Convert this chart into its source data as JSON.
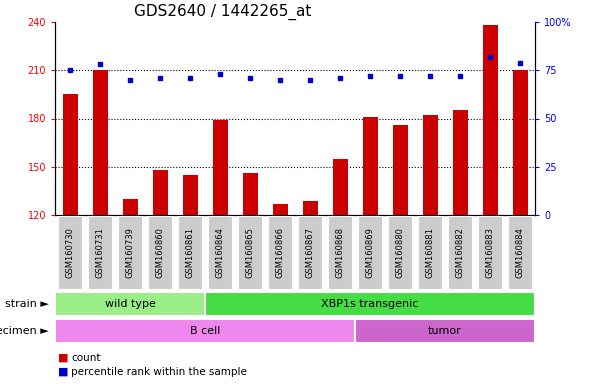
{
  "title": "GDS2640 / 1442265_at",
  "samples": [
    "GSM160730",
    "GSM160731",
    "GSM160739",
    "GSM160860",
    "GSM160861",
    "GSM160864",
    "GSM160865",
    "GSM160866",
    "GSM160867",
    "GSM160868",
    "GSM160869",
    "GSM160880",
    "GSM160881",
    "GSM160882",
    "GSM160883",
    "GSM160884"
  ],
  "counts": [
    195,
    210,
    130,
    148,
    145,
    179,
    146,
    127,
    129,
    155,
    181,
    176,
    182,
    185,
    238,
    210
  ],
  "percentile_ranks": [
    75,
    78,
    70,
    71,
    71,
    73,
    71,
    70,
    70,
    71,
    72,
    72,
    72,
    72,
    82,
    79
  ],
  "ylim_left": [
    120,
    240
  ],
  "ylim_right": [
    0,
    100
  ],
  "yticks_left": [
    120,
    150,
    180,
    210,
    240
  ],
  "yticks_right": [
    0,
    25,
    50,
    75,
    100
  ],
  "bar_color": "#cc0000",
  "dot_color": "#0000cc",
  "bar_bottom": 120,
  "strain_groups": [
    {
      "label": "wild type",
      "start": 0,
      "end": 5,
      "color": "#99ee88"
    },
    {
      "label": "XBP1s transgenic",
      "start": 5,
      "end": 16,
      "color": "#44dd44"
    }
  ],
  "specimen_groups": [
    {
      "label": "B cell",
      "start": 0,
      "end": 10,
      "color": "#ee88ee"
    },
    {
      "label": "tumor",
      "start": 10,
      "end": 16,
      "color": "#cc66cc"
    }
  ],
  "strain_label": "strain",
  "specimen_label": "specimen",
  "legend_count_label": "count",
  "legend_pct_label": "percentile rank within the sample",
  "bg_color": "#ffffff",
  "tick_label_bg": "#cccccc",
  "title_fontsize": 11,
  "tick_fontsize": 7,
  "annotation_fontsize": 8,
  "bar_width": 0.5
}
